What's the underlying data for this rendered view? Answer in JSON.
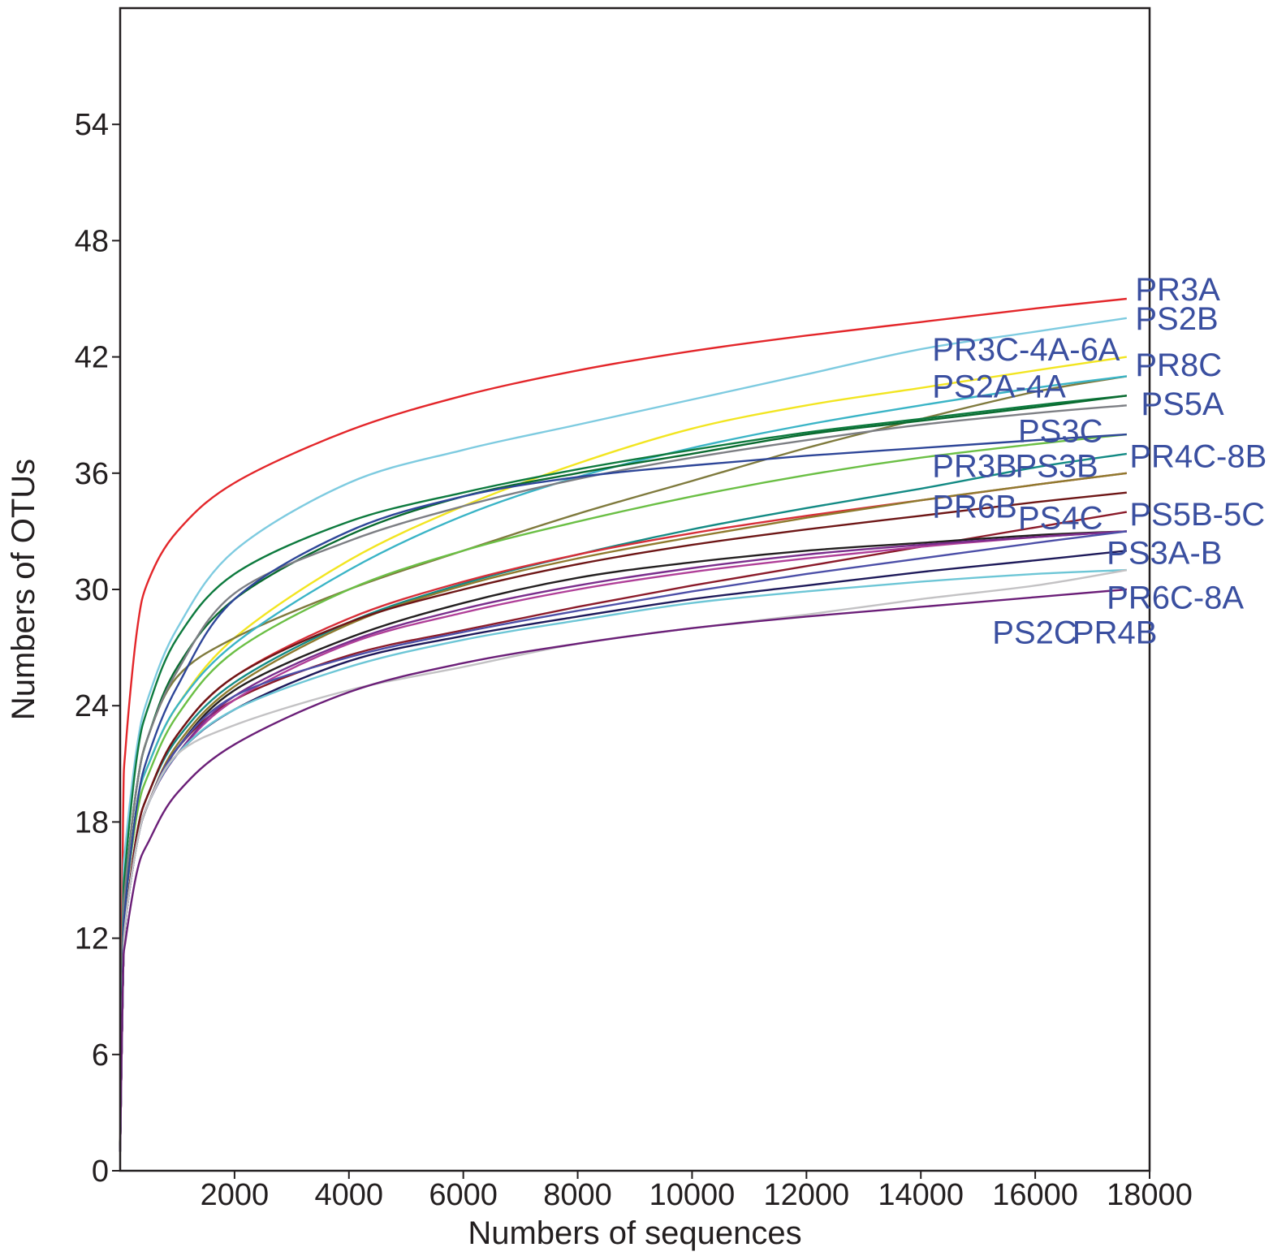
{
  "chart_data": {
    "type": "line",
    "title": "",
    "xlabel": "Numbers of sequences",
    "ylabel": "Numbers of OTUs",
    "xlim": [
      0,
      18000
    ],
    "ylim": [
      0,
      60
    ],
    "x_ticks": [
      2000,
      4000,
      6000,
      8000,
      10000,
      12000,
      14000,
      16000,
      18000
    ],
    "y_ticks": [
      0,
      6,
      12,
      18,
      24,
      30,
      36,
      42,
      48,
      54
    ],
    "grid": false,
    "legend": "none",
    "label_color": "#3a4fa0",
    "series": [
      {
        "color": "#e3262a",
        "x": [
          0,
          50,
          100,
          300,
          500,
          1000,
          2000,
          4000,
          6000,
          8000,
          10000,
          12000,
          14000,
          16000,
          17600
        ],
        "y": [
          1,
          18,
          22,
          28,
          30.5,
          33,
          35.5,
          38.2,
          40,
          41.3,
          42.3,
          43.1,
          43.8,
          44.5,
          45
        ]
      },
      {
        "color": "#7ecbe0",
        "x": [
          0,
          50,
          100,
          300,
          500,
          1000,
          2000,
          4000,
          6000,
          8000,
          10000,
          12000,
          14000,
          16000,
          17600
        ],
        "y": [
          1,
          14,
          17,
          22,
          24.5,
          28,
          32,
          35.5,
          37.2,
          38.5,
          39.8,
          41.1,
          42.4,
          43.3,
          44
        ]
      },
      {
        "color": "#f2e521",
        "x": [
          0,
          50,
          100,
          300,
          500,
          1000,
          2000,
          4000,
          6000,
          8000,
          10000,
          12000,
          14000,
          16000,
          17600
        ],
        "y": [
          1,
          11,
          14,
          19,
          21,
          24,
          27.5,
          31.5,
          34.3,
          36.5,
          38.3,
          39.5,
          40.4,
          41.3,
          42
        ]
      },
      {
        "color": "#7f7a3d",
        "x": [
          0,
          50,
          100,
          300,
          500,
          1000,
          2000,
          4000,
          6000,
          8000,
          10000,
          12000,
          14000,
          16000,
          17600
        ],
        "y": [
          1,
          12,
          15,
          20,
          22.5,
          25.5,
          27.5,
          30,
          32,
          33.9,
          35.6,
          37.3,
          38.8,
          40.2,
          41
        ]
      },
      {
        "color": "#3ab4c6",
        "x": [
          0,
          50,
          100,
          300,
          500,
          1000,
          2000,
          4000,
          6000,
          8000,
          10000,
          12000,
          14000,
          16000,
          17600
        ],
        "y": [
          1,
          11,
          14,
          19,
          21,
          24,
          27.2,
          31,
          33.8,
          35.8,
          37.3,
          38.5,
          39.5,
          40.4,
          41
        ]
      },
      {
        "color": "#0d7a3e",
        "x": [
          0,
          50,
          100,
          300,
          500,
          1000,
          2000,
          4000,
          6000,
          8000,
          10000,
          12000,
          14000,
          16000,
          17600
        ],
        "y": [
          1,
          13,
          16,
          21.5,
          24,
          27.5,
          30.8,
          33.5,
          35,
          36.2,
          37.2,
          38.1,
          38.8,
          39.5,
          40
        ]
      },
      {
        "color": "#0a6b30",
        "x": [
          0,
          50,
          100,
          300,
          500,
          1000,
          2000,
          4000,
          6000,
          8000,
          10000,
          12000,
          14000,
          16000,
          17600
        ],
        "y": [
          1,
          12,
          15,
          20,
          22.5,
          26,
          29.5,
          32.8,
          34.8,
          36,
          37,
          38,
          38.7,
          39.4,
          40
        ]
      },
      {
        "color": "#7d7f84",
        "x": [
          0,
          50,
          100,
          300,
          500,
          1000,
          2000,
          4000,
          6000,
          8000,
          10000,
          12000,
          14000,
          16000,
          17600
        ],
        "y": [
          1,
          12,
          15,
          20,
          22.5,
          25.8,
          29.8,
          32.5,
          34.3,
          35.7,
          36.8,
          37.7,
          38.5,
          39.1,
          39.5
        ]
      },
      {
        "color": "#6bbf45",
        "x": [
          0,
          50,
          100,
          300,
          500,
          1000,
          2000,
          4000,
          6000,
          8000,
          10000,
          12000,
          14000,
          16000,
          17600
        ],
        "y": [
          1,
          11,
          14,
          18.5,
          20.5,
          23.5,
          26.8,
          30,
          32,
          33.5,
          34.8,
          35.9,
          36.8,
          37.5,
          38
        ]
      },
      {
        "color": "#2e4698",
        "x": [
          0,
          50,
          100,
          300,
          500,
          1000,
          2000,
          4000,
          6000,
          8000,
          10000,
          12000,
          14000,
          16000,
          17600
        ],
        "y": [
          1,
          11,
          14,
          19,
          21.5,
          25,
          29.5,
          33,
          34.8,
          35.8,
          36.4,
          36.9,
          37.3,
          37.7,
          38
        ]
      },
      {
        "color": "#138a84",
        "x": [
          0,
          50,
          100,
          300,
          500,
          1000,
          2000,
          4000,
          6000,
          8000,
          10000,
          12000,
          14000,
          16000,
          17600
        ],
        "y": [
          1,
          10,
          13,
          17.5,
          19.5,
          22.3,
          25.2,
          28.3,
          30.3,
          31.8,
          33.1,
          34.2,
          35.2,
          36.3,
          37
        ]
      },
      {
        "color": "#d72e38",
        "x": [
          0,
          50,
          100,
          300,
          500,
          1000,
          2000,
          4000,
          6000,
          8000,
          10000,
          12000,
          14000,
          16000,
          17600
        ],
        "y": [
          1,
          10,
          13,
          17.5,
          19.5,
          22.5,
          25.5,
          28.5,
          30.4,
          31.8,
          32.9,
          33.8,
          34.6,
          35.4,
          36
        ]
      },
      {
        "color": "#8f7a2e",
        "x": [
          0,
          50,
          100,
          300,
          500,
          1000,
          2000,
          4000,
          6000,
          8000,
          10000,
          12000,
          14000,
          16000,
          17600
        ],
        "y": [
          1,
          10,
          13,
          17,
          19,
          22,
          25,
          28.2,
          30.2,
          31.6,
          32.7,
          33.7,
          34.6,
          35.4,
          36
        ]
      },
      {
        "color": "#6e1616",
        "x": [
          0,
          50,
          100,
          300,
          500,
          1000,
          2000,
          4000,
          6000,
          8000,
          10000,
          12000,
          14000,
          16000,
          17600
        ],
        "y": [
          1,
          10,
          13,
          17.5,
          19.5,
          22.5,
          25.5,
          28.3,
          30,
          31.3,
          32.3,
          33.1,
          33.8,
          34.5,
          35
        ]
      },
      {
        "color": "#8b1b2a",
        "x": [
          0,
          50,
          100,
          300,
          500,
          1000,
          2000,
          4000,
          6000,
          8000,
          10000,
          12000,
          14000,
          16000,
          17600
        ],
        "y": [
          1,
          10,
          13,
          17,
          19,
          21.8,
          24.3,
          26.6,
          27.9,
          29.1,
          30.2,
          31.2,
          32.2,
          33.2,
          34
        ]
      },
      {
        "color": "#231f20",
        "x": [
          0,
          50,
          100,
          300,
          500,
          1000,
          2000,
          4000,
          6000,
          8000,
          10000,
          12000,
          14000,
          16000,
          17600
        ],
        "y": [
          1,
          10,
          13,
          17,
          19,
          21.8,
          24.8,
          27.5,
          29.3,
          30.6,
          31.4,
          32,
          32.4,
          32.8,
          33
        ]
      },
      {
        "color": "#b03f98",
        "x": [
          0,
          50,
          100,
          300,
          500,
          1000,
          2000,
          4000,
          6000,
          8000,
          10000,
          12000,
          14000,
          16000,
          17600
        ],
        "y": [
          1,
          10,
          13,
          17,
          19,
          21.5,
          24.3,
          27.2,
          28.8,
          30,
          30.9,
          31.6,
          32.2,
          32.7,
          33
        ]
      },
      {
        "color": "#7a2d8c",
        "x": [
          0,
          50,
          100,
          300,
          500,
          1000,
          2000,
          4000,
          6000,
          8000,
          10000,
          12000,
          14000,
          16000,
          17600
        ],
        "y": [
          1,
          10,
          13,
          17,
          19,
          21.5,
          24.5,
          27.3,
          29,
          30.2,
          31.1,
          31.8,
          32.3,
          32.7,
          33
        ]
      },
      {
        "color": "#4c4fa8",
        "x": [
          0,
          50,
          100,
          300,
          500,
          1000,
          2000,
          4000,
          6000,
          8000,
          10000,
          12000,
          14000,
          16000,
          17600
        ],
        "y": [
          1,
          10,
          13,
          17,
          19,
          21.8,
          24.5,
          26.5,
          27.8,
          28.9,
          29.9,
          30.8,
          31.6,
          32.4,
          33
        ]
      },
      {
        "color": "#1e1a5a",
        "x": [
          0,
          50,
          100,
          300,
          500,
          1000,
          2000,
          4000,
          6000,
          8000,
          10000,
          12000,
          14000,
          16000,
          17600
        ],
        "y": [
          1,
          10,
          13,
          17,
          19,
          21.5,
          23.8,
          26.3,
          27.6,
          28.6,
          29.5,
          30.2,
          30.9,
          31.5,
          32
        ]
      },
      {
        "color": "#6dc6d6",
        "x": [
          0,
          50,
          100,
          300,
          500,
          1000,
          2000,
          4000,
          6000,
          8000,
          10000,
          12000,
          14000,
          16000,
          17600
        ],
        "y": [
          1,
          10,
          13,
          17,
          19,
          21.5,
          23.8,
          26,
          27.4,
          28.4,
          29.3,
          29.9,
          30.4,
          30.8,
          31
        ]
      },
      {
        "color": "#c3c2c4",
        "x": [
          0,
          50,
          100,
          300,
          500,
          1000,
          2000,
          4000,
          6000,
          8000,
          10000,
          12000,
          14000,
          16000,
          17600
        ],
        "y": [
          1,
          10,
          13,
          17,
          19,
          21.5,
          23,
          24.8,
          26,
          27.2,
          28,
          28.7,
          29.5,
          30.2,
          31
        ]
      },
      {
        "color": "#6b1f78",
        "x": [
          0,
          50,
          100,
          300,
          500,
          1000,
          2000,
          4000,
          6000,
          8000,
          10000,
          12000,
          14000,
          16000,
          17600
        ],
        "y": [
          1,
          10,
          12,
          15.5,
          17,
          19.5,
          22,
          24.7,
          26.2,
          27.2,
          28,
          28.6,
          29.1,
          29.6,
          30
        ]
      }
    ],
    "annotations": [
      {
        "text": "PR3A",
        "x": 17750,
        "y": 45.5
      },
      {
        "text": "PS2B",
        "x": 17750,
        "y": 44
      },
      {
        "text": "PR3C-4A-6A",
        "x": 14200,
        "y": 42.4
      },
      {
        "text": "PR8C",
        "x": 17750,
        "y": 41.6
      },
      {
        "text": "PS2A-4A",
        "x": 14200,
        "y": 40.5
      },
      {
        "text": "PS5A",
        "x": 17850,
        "y": 39.6
      },
      {
        "text": "PS3C",
        "x": 15700,
        "y": 38.2
      },
      {
        "text": "PR3B",
        "x": 14200,
        "y": 36.4
      },
      {
        "text": "PS3B",
        "x": 15650,
        "y": 36.4
      },
      {
        "text": "PR4C-8B",
        "x": 17650,
        "y": 36.9
      },
      {
        "text": "PR6B",
        "x": 14200,
        "y": 34.3
      },
      {
        "text": "PS4C",
        "x": 15700,
        "y": 33.7
      },
      {
        "text": "PS5B-5C",
        "x": 17650,
        "y": 33.9
      },
      {
        "text": "PS3A-B",
        "x": 17250,
        "y": 31.9
      },
      {
        "text": "PR6C-8A",
        "x": 17250,
        "y": 29.6
      },
      {
        "text": "PS2C",
        "x": 15250,
        "y": 27.8
      },
      {
        "text": "PR4B",
        "x": 16650,
        "y": 27.8
      }
    ]
  }
}
